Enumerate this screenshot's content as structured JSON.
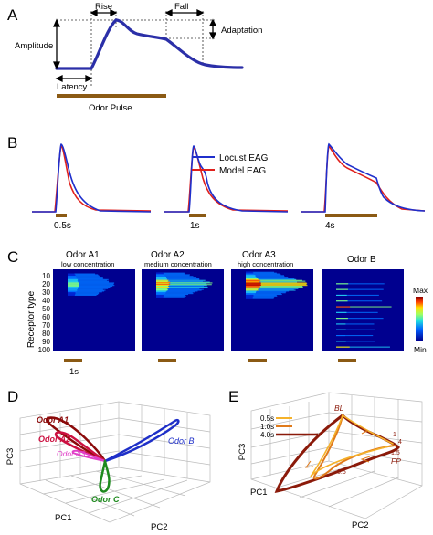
{
  "panel_labels": [
    "A",
    "B",
    "C",
    "D",
    "E"
  ],
  "panelA": {
    "rise": "Rise",
    "fall": "Fall",
    "adaptation": "Adaptation",
    "amplitude": "Amplitude",
    "latency": "Latency",
    "odor_pulse": "Odor Pulse",
    "pulse_color": "#8B5A14",
    "trace_color": "#2B2FA8"
  },
  "panelB": {
    "legend": [
      {
        "label": "Locust EAG",
        "color": "#1F2FCC"
      },
      {
        "label": "Model EAG",
        "color": "#E0201C"
      }
    ],
    "durations": [
      "0.5s",
      "1s",
      "4s"
    ]
  },
  "panelC": {
    "titles": [
      {
        "main": "Odor A1",
        "sub": "low concentration"
      },
      {
        "main": "Odor A2",
        "sub": "medium concentration"
      },
      {
        "main": "Odor A3",
        "sub": "high concentration"
      },
      {
        "main": "Odor B",
        "sub": ""
      }
    ],
    "ylabel": "Receptor type",
    "yticks": [
      "10",
      "20",
      "30",
      "40",
      "50",
      "60",
      "70",
      "80",
      "90",
      "100"
    ],
    "scale_label": "1s",
    "colorbar": {
      "max": "Max",
      "min": "Min"
    }
  },
  "panelD": {
    "axes": {
      "x": "PC1",
      "y": "PC2",
      "z": "PC3"
    },
    "labels": [
      {
        "text": "Odor A1",
        "color": "#8B0A0A"
      },
      {
        "text": "Odor A2",
        "color": "#CC1040"
      },
      {
        "text": "Odor A3",
        "color": "#E040C8"
      },
      {
        "text": "Odor B",
        "color": "#1E2FC8"
      },
      {
        "text": "Odor C",
        "color": "#1E8A1E"
      }
    ]
  },
  "panelE": {
    "axes": {
      "x": "PC1",
      "y": "PC2",
      "z": "PC3"
    },
    "legend": [
      {
        "label": "0.5s",
        "color": "#F5B22A"
      },
      {
        "label": "1.0s",
        "color": "#E07A1A"
      },
      {
        "label": "4.0s",
        "color": "#8B1A0A"
      }
    ],
    "annotations": [
      "BL",
      "FP",
      "0.5",
      "1",
      "4",
      "1.5"
    ]
  }
}
